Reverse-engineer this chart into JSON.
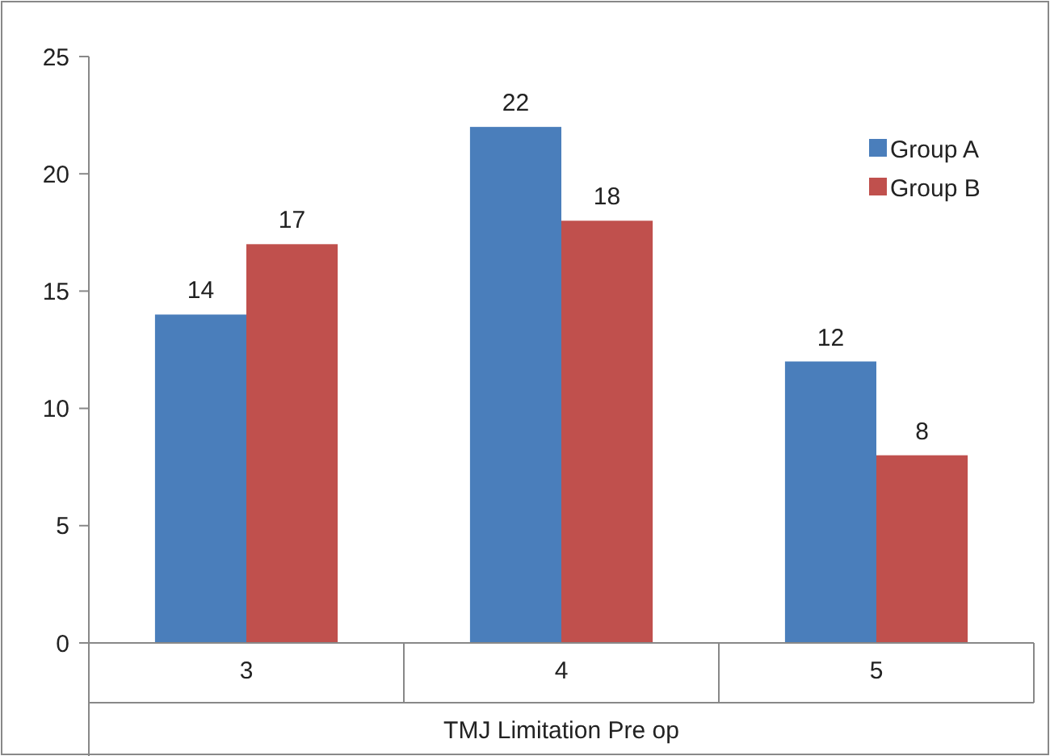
{
  "chart_data": {
    "type": "bar",
    "xlabel": "TMJ Limitation Pre op",
    "categories": [
      "3",
      "4",
      "5"
    ],
    "series": [
      {
        "name": "Group A",
        "color": "#4a7ebb",
        "values": [
          14,
          22,
          12
        ]
      },
      {
        "name": "Group B",
        "color": "#c0504d",
        "values": [
          17,
          18,
          8
        ]
      }
    ],
    "ylim": [
      0,
      25
    ],
    "yticks": [
      0,
      5,
      10,
      15,
      20,
      25
    ],
    "data_labels": true,
    "legend": "top right",
    "grid": false
  }
}
